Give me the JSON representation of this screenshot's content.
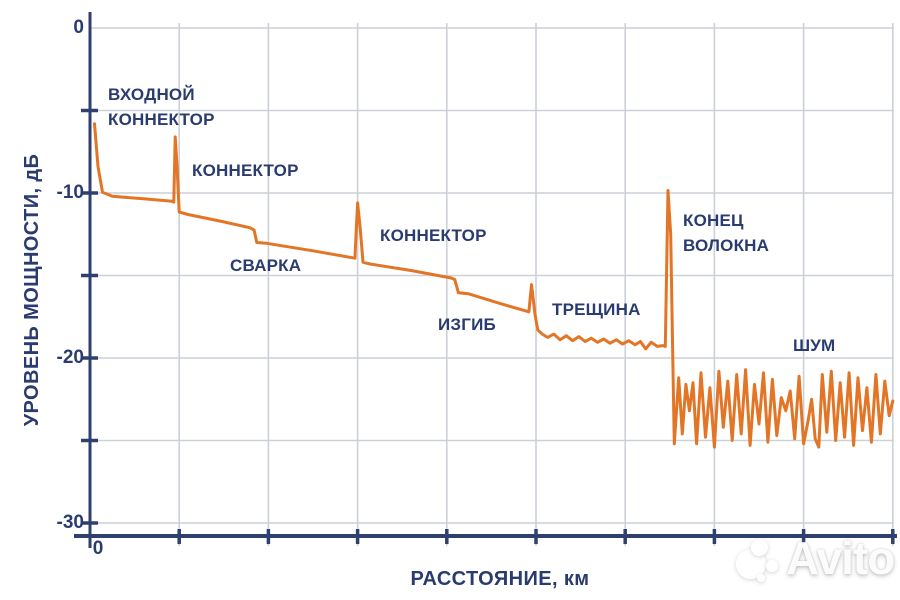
{
  "colors": {
    "trace": "#E27526",
    "axis": "#2F406E",
    "grid": "#CCD1D9",
    "text": "#2A3B70",
    "background": "#FFFFFF",
    "watermark": "#FFFFFF"
  },
  "axes": {
    "y_title": "УРОВЕНЬ МОЩНОСТИ, дБ",
    "x_title": "РАССТОЯНИЕ, км",
    "y_tick_labels": [
      {
        "label": "0",
        "db": 0
      },
      {
        "label": "-10",
        "db": -10
      },
      {
        "label": "-20",
        "db": -20
      },
      {
        "label": "-30",
        "db": -30
      }
    ],
    "x_tick_labels": [
      {
        "label": "0",
        "km": 0
      }
    ],
    "y_minor_ticks_db": [
      -5,
      -10,
      -15,
      -20,
      -25,
      -30
    ],
    "x_ticks_km": [
      1,
      2,
      3,
      4,
      5,
      6,
      7,
      8,
      9
    ],
    "y_grid_db": [
      0,
      -5,
      -10,
      -15,
      -20,
      -25,
      -30
    ],
    "x_grid_km": [
      0,
      1,
      2,
      3,
      4,
      5,
      6,
      7,
      8,
      9
    ]
  },
  "chart_data": {
    "type": "line",
    "title": "",
    "xlabel": "РАССТОЯНИЕ, км",
    "ylabel": "УРОВЕНЬ МОЩНОСТИ, дБ",
    "xlim": [
      0,
      9
    ],
    "ylim": [
      -30,
      0
    ],
    "grid": true,
    "legend": false,
    "series": [
      {
        "name": "otdr-trace",
        "points_km_db": [
          [
            0.05,
            -5.8
          ],
          [
            0.09,
            -8.4
          ],
          [
            0.14,
            -9.95
          ],
          [
            0.25,
            -10.2
          ],
          [
            0.6,
            -10.35
          ],
          [
            0.92,
            -10.5
          ],
          [
            0.94,
            -10.55
          ],
          [
            0.955,
            -6.6
          ],
          [
            0.975,
            -8.3
          ],
          [
            1.0,
            -11.15
          ],
          [
            1.1,
            -11.3
          ],
          [
            1.5,
            -11.75
          ],
          [
            1.79,
            -12.1
          ],
          [
            1.84,
            -12.25
          ],
          [
            1.87,
            -13.0
          ],
          [
            1.98,
            -13.05
          ],
          [
            2.5,
            -13.5
          ],
          [
            2.97,
            -13.95
          ],
          [
            3.0,
            -10.6
          ],
          [
            3.03,
            -12.2
          ],
          [
            3.06,
            -14.2
          ],
          [
            3.14,
            -14.3
          ],
          [
            3.6,
            -14.7
          ],
          [
            4.05,
            -15.15
          ],
          [
            4.09,
            -15.25
          ],
          [
            4.13,
            -16.05
          ],
          [
            4.24,
            -16.1
          ],
          [
            4.6,
            -16.7
          ],
          [
            4.92,
            -17.2
          ],
          [
            4.95,
            -15.55
          ],
          [
            4.99,
            -17.4
          ],
          [
            5.02,
            -18.3
          ],
          [
            5.07,
            -18.55
          ],
          [
            5.13,
            -18.75
          ],
          [
            5.2,
            -18.55
          ],
          [
            5.27,
            -18.9
          ],
          [
            5.34,
            -18.65
          ],
          [
            5.41,
            -18.95
          ],
          [
            5.48,
            -18.7
          ],
          [
            5.55,
            -19.0
          ],
          [
            5.62,
            -18.8
          ],
          [
            5.69,
            -19.05
          ],
          [
            5.76,
            -18.85
          ],
          [
            5.83,
            -19.1
          ],
          [
            5.9,
            -18.9
          ],
          [
            5.97,
            -19.15
          ],
          [
            6.04,
            -18.95
          ],
          [
            6.11,
            -19.2
          ],
          [
            6.17,
            -19.0
          ],
          [
            6.23,
            -19.45
          ],
          [
            6.29,
            -19.05
          ],
          [
            6.36,
            -19.3
          ],
          [
            6.42,
            -19.25
          ],
          [
            6.45,
            -19.3
          ],
          [
            6.48,
            -9.85
          ],
          [
            6.51,
            -12.5
          ],
          [
            6.53,
            -19.0
          ],
          [
            6.55,
            -25.2
          ],
          [
            6.6,
            -21.2
          ],
          [
            6.64,
            -24.6
          ],
          [
            6.68,
            -21.6
          ],
          [
            6.72,
            -23.2
          ],
          [
            6.76,
            -21.5
          ],
          [
            6.8,
            -25.2
          ],
          [
            6.85,
            -20.9
          ],
          [
            6.9,
            -24.8
          ],
          [
            6.95,
            -21.8
          ],
          [
            7.0,
            -25.4
          ],
          [
            7.05,
            -20.8
          ],
          [
            7.1,
            -24.2
          ],
          [
            7.15,
            -21.4
          ],
          [
            7.2,
            -25.0
          ],
          [
            7.25,
            -21.0
          ],
          [
            7.3,
            -24.6
          ],
          [
            7.35,
            -20.7
          ],
          [
            7.4,
            -25.3
          ],
          [
            7.45,
            -21.6
          ],
          [
            7.5,
            -24.0
          ],
          [
            7.55,
            -20.9
          ],
          [
            7.6,
            -25.1
          ],
          [
            7.65,
            -21.3
          ],
          [
            7.7,
            -24.7
          ],
          [
            7.75,
            -22.4
          ],
          [
            7.8,
            -23.2
          ],
          [
            7.85,
            -22.0
          ],
          [
            7.9,
            -24.9
          ],
          [
            7.95,
            -21.1
          ],
          [
            8.0,
            -25.2
          ],
          [
            8.05,
            -23.8
          ],
          [
            8.09,
            -22.5
          ],
          [
            8.13,
            -24.9
          ],
          [
            8.17,
            -25.4
          ],
          [
            8.21,
            -21.0
          ],
          [
            8.26,
            -24.5
          ],
          [
            8.31,
            -20.8
          ],
          [
            8.36,
            -25.0
          ],
          [
            8.41,
            -21.5
          ],
          [
            8.46,
            -24.8
          ],
          [
            8.51,
            -20.9
          ],
          [
            8.56,
            -25.3
          ],
          [
            8.61,
            -21.2
          ],
          [
            8.66,
            -24.4
          ],
          [
            8.71,
            -21.8
          ],
          [
            8.76,
            -25.1
          ],
          [
            8.81,
            -21.0
          ],
          [
            8.86,
            -24.6
          ],
          [
            8.91,
            -21.4
          ],
          [
            8.96,
            -23.5
          ],
          [
            9.0,
            -22.6
          ]
        ]
      }
    ],
    "annotations": [
      {
        "name": "input-connector",
        "lines": [
          "ВХОДНОЙ",
          "КОННЕКТОР"
        ],
        "km": 0.2,
        "db": -3.3
      },
      {
        "name": "connector-1",
        "lines": [
          "КОННЕКТОР"
        ],
        "km": 1.14,
        "db": -7.9
      },
      {
        "name": "splice",
        "lines": [
          "СВАРКА"
        ],
        "km": 1.57,
        "db": -13.65
      },
      {
        "name": "connector-2",
        "lines": [
          "КОННЕКТОР"
        ],
        "km": 3.25,
        "db": -11.8
      },
      {
        "name": "bend",
        "lines": [
          "ИЗГИБ"
        ],
        "km": 3.9,
        "db": -17.2
      },
      {
        "name": "crack",
        "lines": [
          "ТРЕЩИНА"
        ],
        "km": 5.18,
        "db": -16.3
      },
      {
        "name": "fiber-end",
        "lines": [
          "КОНЕЦ",
          "ВОЛОКНА"
        ],
        "km": 6.65,
        "db": -10.9
      },
      {
        "name": "noise",
        "lines": [
          "ШУМ"
        ],
        "km": 7.88,
        "db": -18.5
      }
    ]
  },
  "watermark": {
    "text": "Avito"
  }
}
